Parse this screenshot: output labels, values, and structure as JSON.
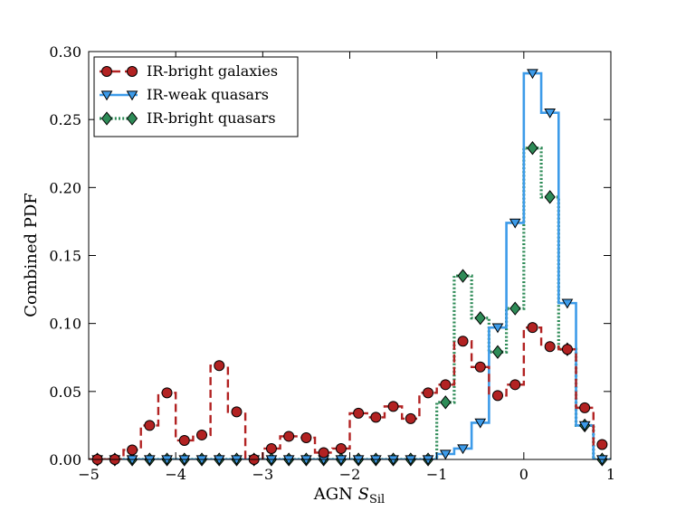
{
  "chart_data": {
    "type": "step-line",
    "title": "",
    "xlabel": "AGN ",
    "xlabel_symbol": "S",
    "xlabel_subscript": "Sil",
    "ylabel": "Combined PDF",
    "xlim": [
      -5,
      1
    ],
    "ylim": [
      0,
      0.3
    ],
    "xticks": [
      -5,
      -4,
      -3,
      -2,
      -1,
      0,
      1
    ],
    "xtick_labels": [
      "−5",
      "−4",
      "−3",
      "−2",
      "−1",
      "0",
      "1"
    ],
    "yticks": [
      0,
      0.05,
      0.1,
      0.15,
      0.2,
      0.25,
      0.3
    ],
    "ytick_labels": [
      "0.00",
      "0.05",
      "0.10",
      "0.15",
      "0.20",
      "0.25",
      "0.30"
    ],
    "legend_position": "top-left",
    "x": [
      -4.9,
      -4.7,
      -4.5,
      -4.3,
      -4.1,
      -3.9,
      -3.7,
      -3.5,
      -3.3,
      -3.1,
      -2.9,
      -2.7,
      -2.5,
      -2.3,
      -2.1,
      -1.9,
      -1.7,
      -1.5,
      -1.3,
      -1.1,
      -0.9,
      -0.7,
      -0.5,
      -0.3,
      -0.1,
      0.1,
      0.3,
      0.5,
      0.7,
      0.9
    ],
    "series": [
      {
        "name": "IR-bright galaxies",
        "color": "#b22222",
        "line_style": "dashed",
        "marker": "circle",
        "values": [
          0.0,
          0.0,
          0.007,
          0.025,
          0.049,
          0.014,
          0.018,
          0.069,
          0.035,
          0.0,
          0.008,
          0.017,
          0.016,
          0.005,
          0.008,
          0.034,
          0.031,
          0.039,
          0.03,
          0.049,
          0.055,
          0.087,
          0.068,
          0.047,
          0.055,
          0.097,
          0.083,
          0.081,
          0.038,
          0.011
        ]
      },
      {
        "name": "IR-weak quasars",
        "color": "#3d9be9",
        "line_style": "solid",
        "marker": "triangle-down",
        "values": [
          0.0,
          0.0,
          0.0,
          0.0,
          0.0,
          0.0,
          0.0,
          0.0,
          0.0,
          0.0,
          0.0,
          0.0,
          0.0,
          0.0,
          0.0,
          0.0,
          0.0,
          0.0,
          0.0,
          0.0,
          0.004,
          0.008,
          0.027,
          0.097,
          0.174,
          0.284,
          0.255,
          0.115,
          0.025,
          0.0
        ]
      },
      {
        "name": "IR-bright quasars",
        "color": "#2e8b57",
        "line_style": "dotted",
        "marker": "diamond",
        "values": [
          0.0,
          0.0,
          0.0,
          0.0,
          0.0,
          0.0,
          0.0,
          0.0,
          0.0,
          0.0,
          0.0,
          0.0,
          0.0,
          0.0,
          0.0,
          0.0,
          0.0,
          0.0,
          0.0,
          0.0,
          0.042,
          0.135,
          0.104,
          0.079,
          0.111,
          0.229,
          0.193,
          0.081,
          0.025,
          0.0
        ]
      }
    ]
  }
}
